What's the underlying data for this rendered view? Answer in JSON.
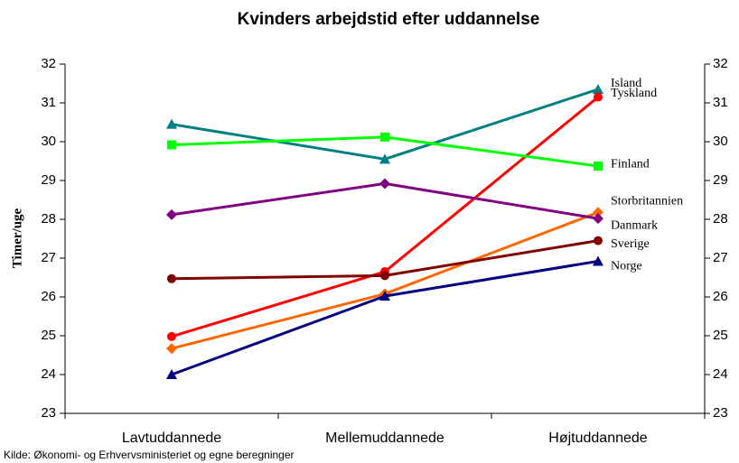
{
  "chart_data": {
    "type": "line",
    "title": "Kvinders arbejdstid efter uddannelse",
    "y_label": "Timer/uge",
    "source": "Kilde: Økonomi- og Erhvervsministeriet og egne beregninger",
    "categories": [
      "Lavtuddannede",
      "Mellemuddannede",
      "Højtuddannede"
    ],
    "series": [
      {
        "name": "Island",
        "color": "#008080",
        "marker": "triangle",
        "values": [
          30.45,
          29.55,
          31.35
        ]
      },
      {
        "name": "Tyskland",
        "color": "#ff0000",
        "marker": "circle",
        "values": [
          24.98,
          26.65,
          31.15
        ]
      },
      {
        "name": "Finland",
        "color": "#00ff00",
        "marker": "square",
        "values": [
          29.92,
          30.12,
          29.37
        ]
      },
      {
        "name": "Storbritannien",
        "color": "#ff6600",
        "marker": "diamond",
        "values": [
          24.67,
          26.08,
          28.18
        ]
      },
      {
        "name": "Danmark",
        "color": "#800080",
        "marker": "diamond",
        "values": [
          28.12,
          28.92,
          28.02
        ]
      },
      {
        "name": "Sverige",
        "color": "#800000",
        "marker": "circle",
        "values": [
          26.47,
          26.55,
          27.45
        ]
      },
      {
        "name": "Norge",
        "color": "#000080",
        "marker": "triangle",
        "values": [
          24.0,
          26.02,
          26.92
        ]
      }
    ],
    "ylim": [
      23,
      32
    ],
    "yticks": [
      23,
      24,
      25,
      26,
      27,
      28,
      29,
      30,
      31,
      32
    ],
    "y2lim": [
      23,
      32
    ],
    "y2ticks": [
      23,
      24,
      25,
      26,
      27,
      28,
      29,
      30,
      31,
      32
    ]
  }
}
